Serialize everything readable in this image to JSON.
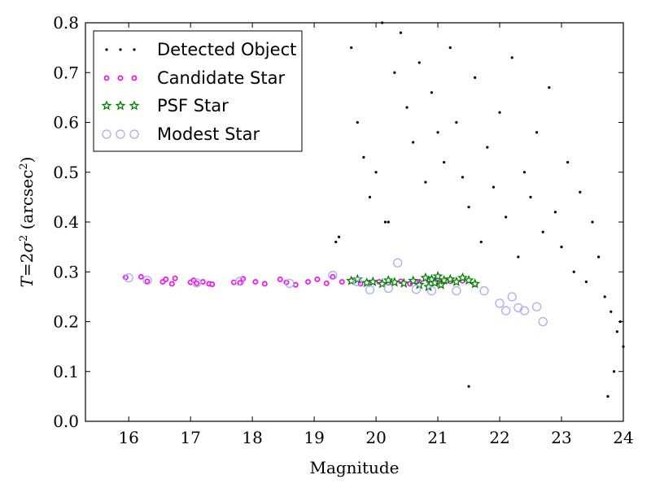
{
  "chart_data": {
    "type": "scatter",
    "xlabel": "Magnitude",
    "ylabel_parts": {
      "italic_T": "T",
      "eq": "=2",
      "sigma": "σ",
      "sup2": "2",
      "open": " (arcsec",
      "sup_b": "2",
      "close": ")"
    },
    "xlim": [
      15.3,
      24.0
    ],
    "ylim": [
      0.0,
      0.8
    ],
    "xticks": [
      16,
      17,
      18,
      19,
      20,
      21,
      22,
      23,
      24
    ],
    "yticks": [
      0.0,
      0.1,
      0.2,
      0.3,
      0.4,
      0.5,
      0.6,
      0.7,
      0.8
    ],
    "xtick_labels": [
      "16",
      "17",
      "18",
      "19",
      "20",
      "21",
      "22",
      "23",
      "24"
    ],
    "ytick_labels": [
      "0.0",
      "0.1",
      "0.2",
      "0.3",
      "0.4",
      "0.5",
      "0.6",
      "0.7",
      "0.8"
    ],
    "grid": false,
    "legend_position": "upper-left",
    "colors": {
      "detected": "#000000",
      "candidate": "#ff00ff",
      "psf": "#008000",
      "modest": "#aaaaff"
    },
    "series": [
      {
        "name": "Detected Object",
        "marker": "dot",
        "x": [
          19.4,
          19.6,
          19.7,
          19.8,
          19.9,
          20.0,
          20.1,
          20.2,
          20.3,
          20.4,
          20.5,
          20.6,
          20.7,
          20.8,
          20.9,
          21.0,
          21.1,
          21.2,
          21.3,
          21.4,
          21.5,
          21.6,
          21.7,
          21.8,
          21.9,
          22.0,
          22.1,
          22.2,
          22.3,
          22.4,
          22.5,
          22.6,
          22.7,
          22.8,
          22.9,
          23.0,
          23.1,
          23.2,
          23.3,
          23.4,
          23.5,
          23.6,
          23.7,
          23.8,
          23.9,
          24.0,
          19.35,
          20.15,
          21.5,
          23.75,
          23.85,
          23.95
        ],
        "y": [
          0.37,
          0.75,
          0.6,
          0.53,
          0.45,
          0.5,
          0.8,
          0.4,
          0.7,
          0.78,
          0.63,
          0.56,
          0.72,
          0.48,
          0.66,
          0.58,
          0.52,
          0.75,
          0.6,
          0.49,
          0.43,
          0.69,
          0.36,
          0.55,
          0.47,
          0.62,
          0.41,
          0.73,
          0.33,
          0.5,
          0.45,
          0.58,
          0.38,
          0.67,
          0.42,
          0.35,
          0.52,
          0.3,
          0.46,
          0.28,
          0.4,
          0.33,
          0.25,
          0.22,
          0.18,
          0.15,
          0.36,
          0.4,
          0.07,
          0.05,
          0.1,
          0.2
        ]
      },
      {
        "name": "Candidate Star",
        "marker": "circle-small",
        "x": [
          15.95,
          16.2,
          16.3,
          16.55,
          16.6,
          16.7,
          16.75,
          17.0,
          17.05,
          17.1,
          17.2,
          17.3,
          17.35,
          17.7,
          17.8,
          17.85,
          18.05,
          18.2,
          18.45,
          18.55,
          18.7,
          18.9,
          19.05,
          19.2,
          19.3,
          19.45,
          19.6,
          19.75,
          19.9,
          20.05,
          20.2,
          20.4,
          20.55,
          20.7,
          20.85,
          21.0,
          21.2,
          21.4,
          21.6
        ],
        "y": [
          0.289,
          0.29,
          0.281,
          0.28,
          0.285,
          0.276,
          0.287,
          0.279,
          0.283,
          0.277,
          0.28,
          0.276,
          0.275,
          0.279,
          0.278,
          0.286,
          0.28,
          0.276,
          0.285,
          0.279,
          0.274,
          0.28,
          0.285,
          0.277,
          0.29,
          0.28,
          0.282,
          0.276,
          0.279,
          0.28,
          0.278,
          0.281,
          0.276,
          0.28,
          0.283,
          0.279,
          0.281,
          0.282,
          0.275
        ]
      },
      {
        "name": "PSF Star",
        "marker": "star",
        "x": [
          19.6,
          19.7,
          19.85,
          19.95,
          20.1,
          20.2,
          20.3,
          20.45,
          20.6,
          20.7,
          20.8,
          20.85,
          20.9,
          20.95,
          21.0,
          21.05,
          21.1,
          21.2,
          21.3,
          21.4,
          21.5,
          21.6
        ],
        "y": [
          0.282,
          0.285,
          0.278,
          0.28,
          0.276,
          0.283,
          0.279,
          0.277,
          0.282,
          0.274,
          0.288,
          0.27,
          0.285,
          0.278,
          0.291,
          0.274,
          0.283,
          0.285,
          0.28,
          0.288,
          0.283,
          0.276
        ]
      },
      {
        "name": "Modest Star",
        "marker": "circle-large",
        "x": [
          16.0,
          16.3,
          17.1,
          17.8,
          18.6,
          19.3,
          19.7,
          19.9,
          20.2,
          20.35,
          20.65,
          20.9,
          21.3,
          21.75,
          22.0,
          22.1,
          22.2,
          22.3,
          22.4,
          22.6,
          22.7
        ],
        "y": [
          0.288,
          0.283,
          0.278,
          0.281,
          0.277,
          0.293,
          0.28,
          0.264,
          0.267,
          0.318,
          0.265,
          0.262,
          0.262,
          0.262,
          0.237,
          0.222,
          0.25,
          0.228,
          0.222,
          0.23,
          0.2
        ]
      }
    ]
  }
}
